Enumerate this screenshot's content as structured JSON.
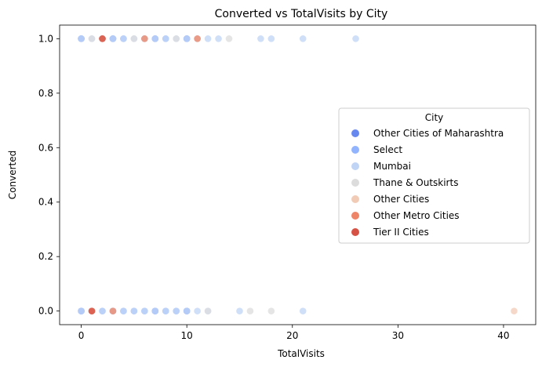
{
  "chart_data": {
    "type": "scatter",
    "title": "Converted vs TotalVisits by City",
    "xlabel": "TotalVisits",
    "ylabel": "Converted",
    "xlim": [
      -2.05,
      43.05
    ],
    "ylim": [
      -0.05,
      1.05
    ],
    "xticks": [
      0,
      10,
      20,
      30,
      40
    ],
    "yticks": [
      0.0,
      0.2,
      0.4,
      0.6,
      0.8,
      1.0
    ],
    "ytick_labels": [
      "0.0",
      "0.2",
      "0.4",
      "0.6",
      "0.8",
      "1.0"
    ],
    "grid": false,
    "legend": {
      "title": "City",
      "position": "center-right"
    },
    "series": [
      {
        "name": "Other Cities of Maharashtra",
        "color": "#6788ee",
        "points": [
          [
            0,
            1
          ],
          [
            3,
            1
          ],
          [
            7,
            1
          ],
          [
            10,
            1
          ],
          [
            0,
            0
          ],
          [
            3,
            0
          ],
          [
            7,
            0
          ],
          [
            10,
            0
          ]
        ]
      },
      {
        "name": "Select",
        "color": "#92b4fe",
        "points": [
          [
            0,
            1
          ],
          [
            2,
            1
          ],
          [
            3,
            1
          ],
          [
            4,
            1
          ],
          [
            6,
            1
          ],
          [
            7,
            1
          ],
          [
            8,
            1
          ],
          [
            10,
            1
          ],
          [
            0,
            0
          ],
          [
            1,
            0
          ],
          [
            2,
            0
          ],
          [
            3,
            0
          ],
          [
            4,
            0
          ],
          [
            5,
            0
          ],
          [
            6,
            0
          ],
          [
            7,
            0
          ],
          [
            8,
            0
          ],
          [
            9,
            0
          ],
          [
            10,
            0
          ]
        ]
      },
      {
        "name": "Mumbai",
        "color": "#c0d4f5",
        "points": [
          [
            0,
            1
          ],
          [
            1,
            1
          ],
          [
            2,
            1
          ],
          [
            3,
            1
          ],
          [
            4,
            1
          ],
          [
            5,
            1
          ],
          [
            6,
            1
          ],
          [
            7,
            1
          ],
          [
            8,
            1
          ],
          [
            9,
            1
          ],
          [
            10,
            1
          ],
          [
            11,
            1
          ],
          [
            12,
            1
          ],
          [
            13,
            1
          ],
          [
            17,
            1
          ],
          [
            18,
            1
          ],
          [
            21,
            1
          ],
          [
            26,
            1
          ],
          [
            0,
            0
          ],
          [
            1,
            0
          ],
          [
            2,
            0
          ],
          [
            3,
            0
          ],
          [
            4,
            0
          ],
          [
            5,
            0
          ],
          [
            6,
            0
          ],
          [
            7,
            0
          ],
          [
            8,
            0
          ],
          [
            9,
            0
          ],
          [
            10,
            0
          ],
          [
            11,
            0
          ],
          [
            12,
            0
          ],
          [
            15,
            0
          ],
          [
            21,
            0
          ]
        ]
      },
      {
        "name": "Thane & Outskirts",
        "color": "#dddcdc",
        "points": [
          [
            1,
            1
          ],
          [
            5,
            1
          ],
          [
            6,
            1
          ],
          [
            9,
            1
          ],
          [
            11,
            1
          ],
          [
            14,
            1
          ],
          [
            1,
            0
          ],
          [
            3,
            0
          ],
          [
            12,
            0
          ],
          [
            16,
            0
          ],
          [
            18,
            0
          ]
        ]
      },
      {
        "name": "Other Cities",
        "color": "#f2cbb7",
        "points": [
          [
            2,
            1
          ],
          [
            41,
            0
          ],
          [
            1,
            0
          ]
        ]
      },
      {
        "name": "Other Metro Cities",
        "color": "#ee8468",
        "points": [
          [
            2,
            1
          ],
          [
            6,
            1
          ],
          [
            11,
            1
          ],
          [
            1,
            0
          ],
          [
            3,
            0
          ]
        ]
      },
      {
        "name": "Tier II Cities",
        "color": "#d65244",
        "points": [
          [
            2,
            1
          ],
          [
            1,
            0
          ]
        ]
      }
    ]
  }
}
